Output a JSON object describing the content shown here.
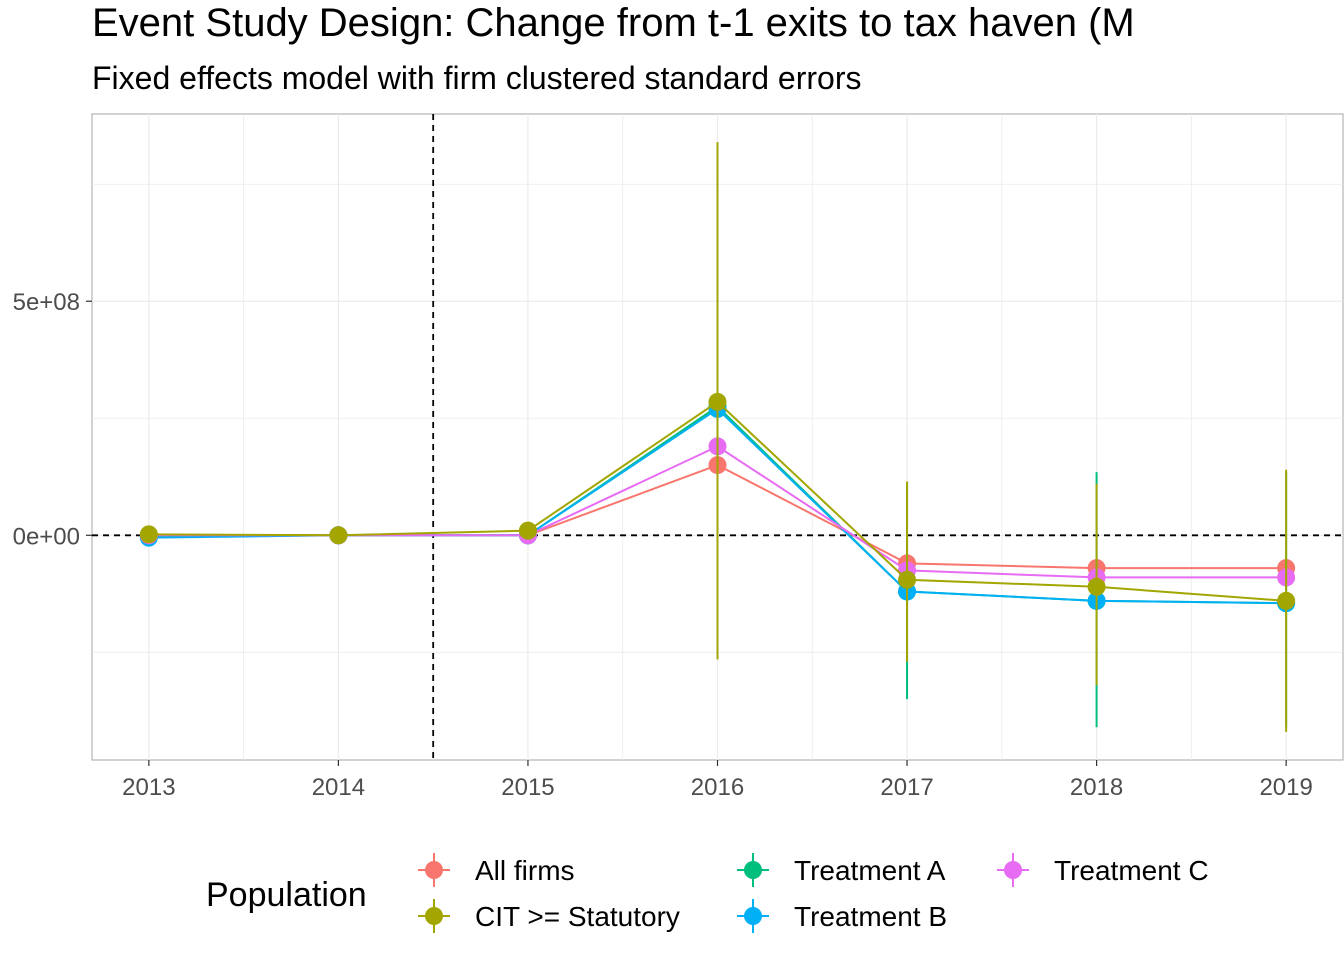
{
  "chart_data": {
    "type": "line",
    "title": "Event Study Design: Change from t-1 exits to tax haven (M",
    "subtitle": "Fixed effects model with firm clustered standard errors",
    "xlabel": "",
    "ylabel": "",
    "x": [
      2013,
      2014,
      2015,
      2016,
      2017,
      2018,
      2019
    ],
    "x_tick_labels": [
      "2013",
      "2014",
      "2015",
      "2016",
      "2017",
      "2018",
      "2019"
    ],
    "y_tick_labels": [
      {
        "value": 0,
        "label": "0e+00"
      },
      {
        "value": 500000000,
        "label": "5e+08"
      }
    ],
    "xlim": [
      2012.7,
      2019.3
    ],
    "ylim": [
      -480000000,
      900000000
    ],
    "grid": true,
    "reference_lines": [
      {
        "axis": "x",
        "value": 2014.5,
        "style": "dashed"
      },
      {
        "axis": "y",
        "value": 0,
        "style": "dashed"
      }
    ],
    "legend": {
      "title": "Population",
      "position": "bottom"
    },
    "series": [
      {
        "name": "All firms",
        "color": "#F8766D",
        "values": [
          0,
          0,
          0,
          150000000,
          -60000000,
          -70000000,
          -70000000
        ],
        "ci": [
          null,
          null,
          null,
          null,
          null,
          null,
          null
        ]
      },
      {
        "name": "CIT >= Statutory",
        "color": "#A3A500",
        "values": [
          2000000,
          0,
          10000000,
          285000000,
          -95000000,
          -110000000,
          -140000000
        ],
        "ci": [
          null,
          null,
          [
            -5000000,
            25000000
          ],
          [
            -265000000,
            840000000
          ],
          [
            -270000000,
            115000000
          ],
          [
            -320000000,
            110000000
          ],
          [
            -420000000,
            140000000
          ]
        ]
      },
      {
        "name": "Treatment A",
        "color": "#00BF7D",
        "values": [
          -3000000,
          0,
          0,
          275000000,
          -120000000,
          -140000000,
          -145000000
        ],
        "ci": [
          null,
          null,
          null,
          null,
          [
            -350000000,
            115000000
          ],
          [
            -410000000,
            135000000
          ],
          [
            -410000000,
            135000000
          ]
        ]
      },
      {
        "name": "Treatment B",
        "color": "#00B0F6",
        "values": [
          -5000000,
          0,
          0,
          270000000,
          -120000000,
          -140000000,
          -145000000
        ],
        "ci": [
          null,
          null,
          null,
          null,
          null,
          null,
          null
        ]
      },
      {
        "name": "Treatment C",
        "color": "#E76BF3",
        "values": [
          0,
          0,
          0,
          190000000,
          -75000000,
          -90000000,
          -90000000
        ],
        "ci": [
          null,
          null,
          null,
          null,
          null,
          null,
          null
        ]
      }
    ]
  }
}
